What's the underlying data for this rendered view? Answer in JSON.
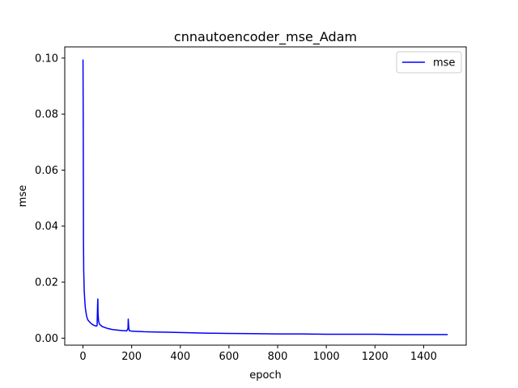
{
  "chart_data": {
    "type": "line",
    "title": "cnnautoencoder_mse_Adam",
    "xlabel": "epoch",
    "ylabel": "mse",
    "xlim": [
      -75,
      1575
    ],
    "ylim": [
      -0.0025,
      0.104
    ],
    "xticks": [
      0,
      200,
      400,
      600,
      800,
      1000,
      1200,
      1400
    ],
    "yticks": [
      0.0,
      0.02,
      0.04,
      0.06,
      0.08,
      0.1
    ],
    "xtick_labels": [
      "0",
      "200",
      "400",
      "600",
      "800",
      "1000",
      "1200",
      "1400"
    ],
    "ytick_labels": [
      "0.00",
      "0.02",
      "0.04",
      "0.06",
      "0.08",
      "0.10"
    ],
    "grid": false,
    "legend_position": "upper right",
    "series": [
      {
        "name": "mse",
        "color": "#0000ff",
        "x": [
          0,
          1,
          2,
          3,
          5,
          8,
          10,
          15,
          20,
          30,
          40,
          50,
          55,
          58,
          60,
          61,
          62,
          64,
          66,
          70,
          80,
          100,
          120,
          150,
          180,
          185,
          186,
          188,
          190,
          200,
          250,
          300,
          350,
          400,
          500,
          600,
          700,
          800,
          900,
          1000,
          1100,
          1200,
          1300,
          1400,
          1499
        ],
        "y": [
          0.0995,
          0.075,
          0.035,
          0.024,
          0.017,
          0.0125,
          0.0105,
          0.0078,
          0.0065,
          0.0055,
          0.0048,
          0.0044,
          0.0043,
          0.0045,
          0.012,
          0.014,
          0.0085,
          0.0062,
          0.0054,
          0.0048,
          0.0041,
          0.0035,
          0.0031,
          0.0028,
          0.0026,
          0.0035,
          0.0068,
          0.0038,
          0.0027,
          0.0025,
          0.0023,
          0.0022,
          0.0021,
          0.002,
          0.0018,
          0.0017,
          0.0016,
          0.0015,
          0.0015,
          0.0014,
          0.0014,
          0.0014,
          0.0013,
          0.0013,
          0.0013
        ]
      }
    ]
  }
}
